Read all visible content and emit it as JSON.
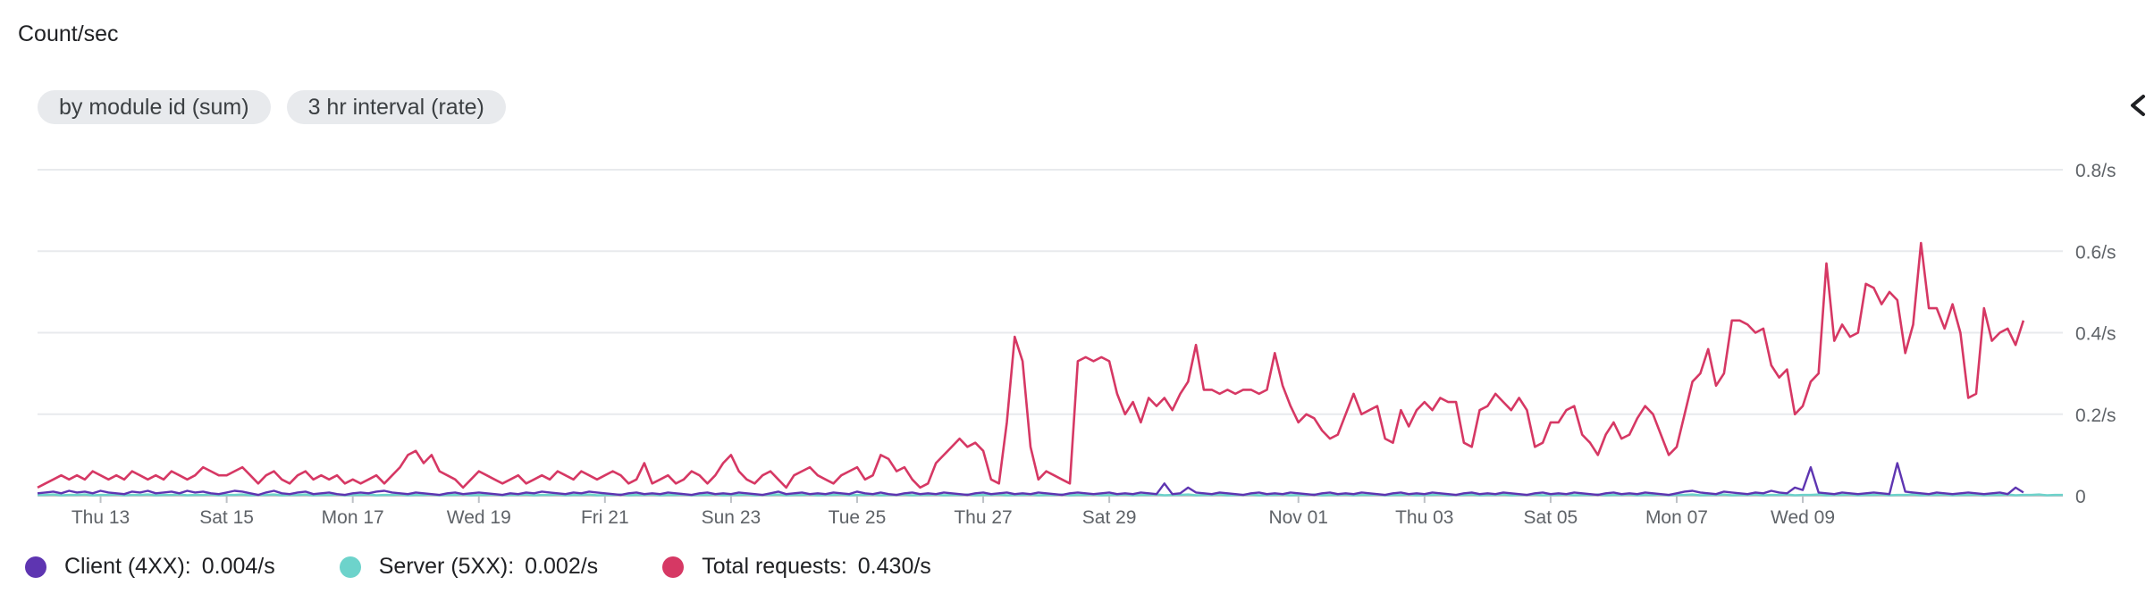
{
  "header": {
    "title": "Count/sec"
  },
  "filters": {
    "group_by": "by module id (sum)",
    "interval": "3 hr interval (rate)"
  },
  "icons": {
    "collapse": "chevron-left-icon"
  },
  "legend": [
    {
      "label": "Client (4XX):",
      "value": "0.004/s",
      "color": "#5e35b1"
    },
    {
      "label": "Server (5XX):",
      "value": "0.002/s",
      "color": "#6dd3cb"
    },
    {
      "label": "Total requests:",
      "value": "0.430/s",
      "color": "#d63864"
    }
  ],
  "chart_data": {
    "type": "line",
    "x_start": "2022-10-12 00:00",
    "x_interval": "3h",
    "x_ticks": [
      {
        "date": "2022-10-13",
        "label": "Thu 13"
      },
      {
        "date": "2022-10-15",
        "label": "Sat 15"
      },
      {
        "date": "2022-10-17",
        "label": "Mon 17"
      },
      {
        "date": "2022-10-19",
        "label": "Wed 19"
      },
      {
        "date": "2022-10-21",
        "label": "Fri 21"
      },
      {
        "date": "2022-10-23",
        "label": "Sun 23"
      },
      {
        "date": "2022-10-25",
        "label": "Tue 25"
      },
      {
        "date": "2022-10-27",
        "label": "Thu 27"
      },
      {
        "date": "2022-10-29",
        "label": "Sat 29"
      },
      {
        "date": "2022-11-01",
        "label": "Nov 01"
      },
      {
        "date": "2022-11-03",
        "label": "Thu 03"
      },
      {
        "date": "2022-11-05",
        "label": "Sat 05"
      },
      {
        "date": "2022-11-07",
        "label": "Mon 07"
      },
      {
        "date": "2022-11-09",
        "label": "Wed 09"
      }
    ],
    "y_ticks": [
      {
        "value": 0,
        "label": "0"
      },
      {
        "value": 0.2,
        "label": "0.2/s"
      },
      {
        "value": 0.4,
        "label": "0.4/s"
      },
      {
        "value": 0.6,
        "label": "0.6/s"
      },
      {
        "value": 0.8,
        "label": "0.8/s"
      }
    ],
    "ylim": [
      0,
      0.8
    ],
    "grid": true,
    "legend_position": "bottom",
    "series": [
      {
        "name": "Total requests",
        "color": "#d63864",
        "values": [
          0.02,
          0.03,
          0.04,
          0.05,
          0.04,
          0.05,
          0.04,
          0.06,
          0.05,
          0.04,
          0.05,
          0.04,
          0.06,
          0.05,
          0.04,
          0.05,
          0.04,
          0.06,
          0.05,
          0.04,
          0.05,
          0.07,
          0.06,
          0.05,
          0.05,
          0.06,
          0.07,
          0.05,
          0.03,
          0.05,
          0.06,
          0.04,
          0.03,
          0.05,
          0.06,
          0.04,
          0.05,
          0.04,
          0.05,
          0.03,
          0.04,
          0.03,
          0.04,
          0.05,
          0.03,
          0.05,
          0.07,
          0.1,
          0.11,
          0.08,
          0.1,
          0.06,
          0.05,
          0.04,
          0.02,
          0.04,
          0.06,
          0.05,
          0.04,
          0.03,
          0.04,
          0.05,
          0.03,
          0.04,
          0.05,
          0.04,
          0.06,
          0.05,
          0.04,
          0.06,
          0.05,
          0.04,
          0.05,
          0.06,
          0.05,
          0.03,
          0.04,
          0.08,
          0.03,
          0.04,
          0.05,
          0.03,
          0.04,
          0.06,
          0.05,
          0.03,
          0.05,
          0.08,
          0.1,
          0.06,
          0.04,
          0.03,
          0.05,
          0.06,
          0.04,
          0.02,
          0.05,
          0.06,
          0.07,
          0.05,
          0.04,
          0.03,
          0.05,
          0.06,
          0.07,
          0.04,
          0.05,
          0.1,
          0.09,
          0.06,
          0.07,
          0.04,
          0.02,
          0.03,
          0.08,
          0.1,
          0.12,
          0.14,
          0.12,
          0.13,
          0.11,
          0.04,
          0.03,
          0.18,
          0.39,
          0.33,
          0.12,
          0.04,
          0.06,
          0.05,
          0.04,
          0.03,
          0.33,
          0.34,
          0.33,
          0.34,
          0.33,
          0.25,
          0.2,
          0.23,
          0.18,
          0.24,
          0.22,
          0.24,
          0.21,
          0.25,
          0.28,
          0.37,
          0.26,
          0.26,
          0.25,
          0.26,
          0.25,
          0.26,
          0.26,
          0.25,
          0.26,
          0.35,
          0.27,
          0.22,
          0.18,
          0.2,
          0.19,
          0.16,
          0.14,
          0.15,
          0.2,
          0.25,
          0.2,
          0.21,
          0.22,
          0.14,
          0.13,
          0.21,
          0.17,
          0.21,
          0.23,
          0.21,
          0.24,
          0.23,
          0.23,
          0.13,
          0.12,
          0.21,
          0.22,
          0.25,
          0.23,
          0.21,
          0.24,
          0.21,
          0.12,
          0.13,
          0.18,
          0.18,
          0.21,
          0.22,
          0.15,
          0.13,
          0.1,
          0.15,
          0.18,
          0.14,
          0.15,
          0.19,
          0.22,
          0.2,
          0.15,
          0.1,
          0.12,
          0.2,
          0.28,
          0.3,
          0.36,
          0.27,
          0.3,
          0.43,
          0.43,
          0.42,
          0.4,
          0.41,
          0.32,
          0.29,
          0.31,
          0.2,
          0.22,
          0.28,
          0.3,
          0.57,
          0.38,
          0.42,
          0.39,
          0.4,
          0.52,
          0.51,
          0.47,
          0.5,
          0.48,
          0.35,
          0.42,
          0.62,
          0.46,
          0.46,
          0.41,
          0.47,
          0.4,
          0.24,
          0.25,
          0.46,
          0.38,
          0.4,
          0.41,
          0.37,
          0.43
        ]
      },
      {
        "name": "Client (4XX)",
        "color": "#5e35b1",
        "values": [
          0.006,
          0.008,
          0.01,
          0.006,
          0.012,
          0.008,
          0.01,
          0.006,
          0.012,
          0.008,
          0.006,
          0.004,
          0.01,
          0.008,
          0.012,
          0.006,
          0.008,
          0.01,
          0.006,
          0.012,
          0.008,
          0.01,
          0.006,
          0.004,
          0.008,
          0.012,
          0.01,
          0.006,
          0.002,
          0.008,
          0.012,
          0.006,
          0.004,
          0.008,
          0.01,
          0.004,
          0.006,
          0.008,
          0.004,
          0.002,
          0.006,
          0.008,
          0.006,
          0.01,
          0.012,
          0.008,
          0.006,
          0.004,
          0.008,
          0.006,
          0.004,
          0.002,
          0.006,
          0.008,
          0.004,
          0.006,
          0.008,
          0.006,
          0.004,
          0.002,
          0.006,
          0.004,
          0.008,
          0.006,
          0.01,
          0.008,
          0.006,
          0.004,
          0.008,
          0.006,
          0.01,
          0.008,
          0.006,
          0.004,
          0.002,
          0.006,
          0.008,
          0.004,
          0.006,
          0.004,
          0.008,
          0.006,
          0.004,
          0.002,
          0.006,
          0.008,
          0.004,
          0.006,
          0.004,
          0.008,
          0.006,
          0.004,
          0.002,
          0.006,
          0.01,
          0.004,
          0.006,
          0.008,
          0.004,
          0.006,
          0.004,
          0.008,
          0.006,
          0.004,
          0.01,
          0.006,
          0.004,
          0.008,
          0.004,
          0.002,
          0.006,
          0.008,
          0.004,
          0.006,
          0.004,
          0.008,
          0.006,
          0.004,
          0.002,
          0.006,
          0.008,
          0.004,
          0.006,
          0.008,
          0.004,
          0.006,
          0.004,
          0.008,
          0.006,
          0.004,
          0.002,
          0.006,
          0.008,
          0.006,
          0.004,
          0.006,
          0.008,
          0.004,
          0.006,
          0.004,
          0.008,
          0.006,
          0.004,
          0.03,
          0.004,
          0.006,
          0.02,
          0.008,
          0.006,
          0.004,
          0.008,
          0.006,
          0.004,
          0.002,
          0.006,
          0.008,
          0.004,
          0.006,
          0.004,
          0.008,
          0.006,
          0.004,
          0.002,
          0.006,
          0.008,
          0.004,
          0.006,
          0.004,
          0.008,
          0.006,
          0.004,
          0.002,
          0.006,
          0.008,
          0.004,
          0.006,
          0.004,
          0.008,
          0.006,
          0.004,
          0.002,
          0.006,
          0.008,
          0.004,
          0.006,
          0.004,
          0.008,
          0.006,
          0.004,
          0.002,
          0.006,
          0.008,
          0.004,
          0.006,
          0.004,
          0.008,
          0.006,
          0.004,
          0.002,
          0.006,
          0.008,
          0.004,
          0.006,
          0.004,
          0.008,
          0.006,
          0.004,
          0.002,
          0.006,
          0.01,
          0.012,
          0.008,
          0.006,
          0.004,
          0.01,
          0.008,
          0.006,
          0.004,
          0.008,
          0.006,
          0.012,
          0.008,
          0.006,
          0.02,
          0.014,
          0.07,
          0.008,
          0.006,
          0.004,
          0.008,
          0.006,
          0.004,
          0.006,
          0.008,
          0.006,
          0.004,
          0.08,
          0.01,
          0.008,
          0.006,
          0.004,
          0.008,
          0.006,
          0.004,
          0.006,
          0.008,
          0.006,
          0.004,
          0.006,
          0.008,
          0.004,
          0.02,
          0.008
        ]
      },
      {
        "name": "Server (5XX)",
        "color": "#6dd3cb",
        "values": [
          0.002,
          0.002,
          0.003,
          0.001,
          0.002,
          0.002,
          0.003,
          0.001,
          0.002,
          0.002,
          0.003,
          0.001,
          0.002,
          0.002,
          0.003,
          0.001,
          0.002,
          0.002,
          0.003,
          0.001,
          0.002,
          0.002,
          0.003,
          0.001,
          0.002,
          0.002,
          0.003,
          0.001,
          0.002,
          0.002,
          0.003,
          0.001,
          0.002,
          0.002,
          0.003,
          0.001,
          0.002,
          0.002,
          0.003,
          0.001,
          0.002,
          0.002,
          0.003,
          0.001,
          0.002,
          0.002,
          0.003,
          0.001,
          0.002,
          0.002,
          0.003,
          0.001,
          0.002,
          0.002,
          0.003,
          0.001,
          0.002,
          0.002,
          0.003,
          0.001,
          0.002,
          0.002,
          0.003,
          0.001,
          0.002,
          0.002,
          0.003,
          0.001,
          0.002,
          0.002,
          0.003,
          0.001,
          0.002,
          0.002,
          0.003,
          0.001,
          0.002,
          0.002,
          0.003,
          0.001,
          0.002,
          0.002,
          0.003,
          0.001,
          0.002,
          0.002,
          0.003,
          0.001,
          0.002,
          0.002,
          0.003,
          0.001,
          0.002,
          0.002,
          0.003,
          0.001,
          0.002,
          0.002,
          0.003,
          0.001,
          0.002,
          0.002,
          0.003,
          0.001,
          0.002,
          0.002,
          0.003,
          0.001,
          0.002,
          0.002,
          0.003,
          0.001,
          0.002,
          0.002,
          0.003,
          0.001,
          0.002,
          0.002,
          0.003,
          0.001,
          0.002,
          0.002,
          0.003,
          0.001,
          0.002,
          0.002,
          0.003,
          0.001,
          0.002,
          0.002,
          0.003,
          0.001,
          0.002,
          0.002,
          0.003,
          0.001,
          0.002,
          0.002,
          0.003,
          0.001,
          0.002,
          0.002,
          0.003,
          0.001,
          0.002,
          0.002,
          0.003,
          0.001,
          0.002,
          0.002,
          0.003,
          0.001,
          0.002,
          0.002,
          0.003,
          0.001,
          0.002,
          0.002,
          0.003,
          0.001,
          0.002,
          0.002,
          0.003,
          0.001,
          0.002,
          0.002,
          0.003,
          0.001,
          0.002,
          0.002,
          0.003,
          0.001,
          0.002,
          0.002,
          0.003,
          0.001,
          0.002,
          0.002,
          0.003,
          0.001,
          0.002,
          0.002,
          0.003,
          0.001,
          0.002,
          0.002,
          0.003,
          0.001,
          0.002,
          0.002,
          0.003,
          0.001,
          0.002,
          0.002,
          0.003,
          0.001,
          0.002,
          0.002,
          0.003,
          0.001,
          0.002,
          0.002,
          0.003,
          0.001,
          0.002,
          0.002,
          0.003,
          0.001,
          0.002,
          0.002,
          0.003,
          0.001,
          0.002,
          0.002,
          0.003,
          0.001,
          0.002,
          0.002,
          0.003,
          0.001,
          0.002,
          0.002,
          0.003,
          0.001,
          0.002,
          0.002,
          0.003,
          0.001,
          0.002,
          0.002,
          0.003,
          0.001,
          0.002,
          0.002,
          0.003,
          0.001,
          0.002,
          0.002,
          0.003,
          0.001,
          0.002,
          0.002,
          0.003,
          0.001,
          0.002,
          0.002,
          0.003,
          0.001,
          0.002,
          0.002,
          0.003,
          0.001,
          0.002,
          0.002,
          0.003,
          0.001,
          0.002,
          0.002
        ]
      }
    ]
  }
}
